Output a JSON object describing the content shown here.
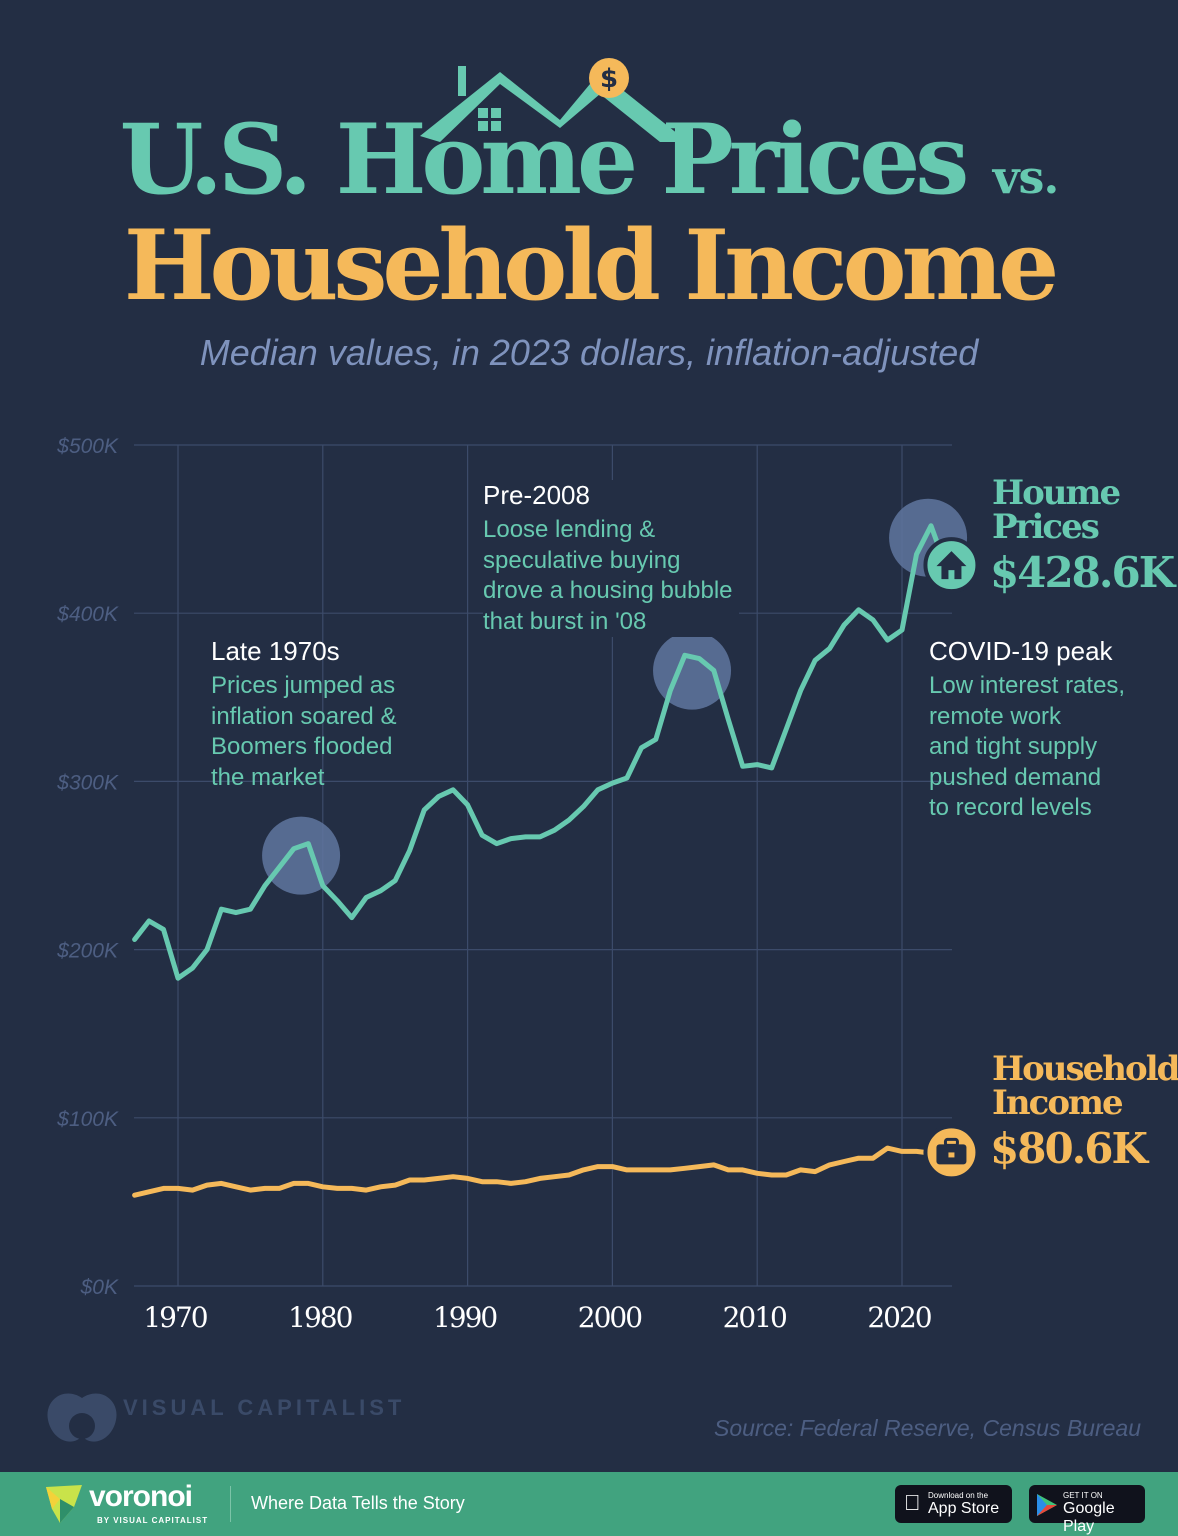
{
  "title": {
    "line1": "U.S. Home Prices",
    "vs": "vs.",
    "line2": "Household Income"
  },
  "subtitle": "Median values, in 2023 dollars, inflation-adjusted",
  "colors": {
    "background": "#232e44",
    "home": "#67c9b0",
    "income": "#f5b95a",
    "highlight": "#5f769f",
    "footer": "#41a37f"
  },
  "annotations": [
    {
      "heading": "Late 1970s",
      "lines": [
        "Prices jumped as",
        "inflation soared &",
        "Boomers flooded",
        "the market"
      ]
    },
    {
      "heading": "Pre-2008",
      "lines": [
        "Loose lending &",
        "speculative buying",
        "drove a housing bubble",
        "that burst in '08"
      ]
    },
    {
      "heading": "COVID-19 peak",
      "lines": [
        "Low interest rates,",
        "remote work",
        "and tight supply",
        "pushed demand",
        "to record levels"
      ]
    }
  ],
  "chart_data": {
    "type": "line",
    "title": "U.S. Home Prices vs. Household Income",
    "ylim": [
      0,
      500
    ],
    "xlim": [
      1967,
      2023
    ],
    "grid": true,
    "y_ticks": [
      "$0K",
      "$100K",
      "$200K",
      "$300K",
      "$400K",
      "$500K"
    ],
    "x_ticks": [
      "1970",
      "1980",
      "1990",
      "2000",
      "2010",
      "2020"
    ],
    "x": [
      1967,
      1968,
      1969,
      1970,
      1971,
      1972,
      1973,
      1974,
      1975,
      1976,
      1977,
      1978,
      1979,
      1980,
      1981,
      1982,
      1983,
      1984,
      1985,
      1986,
      1987,
      1988,
      1989,
      1990,
      1991,
      1992,
      1993,
      1994,
      1995,
      1996,
      1997,
      1998,
      1999,
      2000,
      2001,
      2002,
      2003,
      2004,
      2005,
      2006,
      2007,
      2008,
      2009,
      2010,
      2011,
      2012,
      2013,
      2014,
      2015,
      2016,
      2017,
      2018,
      2019,
      2020,
      2021,
      2022,
      2023
    ],
    "series": [
      {
        "name": "Houme Prices",
        "end_label": "$428.6K",
        "icon": "house-icon",
        "values": [
          206,
          217,
          212,
          183,
          189,
          200,
          224,
          222,
          224,
          238,
          249,
          260,
          263,
          238,
          229,
          219,
          231,
          235,
          241,
          259,
          283,
          291,
          295,
          286,
          268,
          263,
          266,
          267,
          267,
          271,
          277,
          285,
          295,
          299,
          302,
          320,
          325,
          354,
          375,
          373,
          366,
          337,
          309,
          310,
          308,
          331,
          354,
          372,
          379,
          393,
          402,
          396,
          384,
          390,
          435,
          452,
          428.6
        ]
      },
      {
        "name": "Household Income",
        "end_label": "$80.6K",
        "icon": "briefcase-icon",
        "values": [
          54,
          56,
          58,
          58,
          57,
          60,
          61,
          59,
          57,
          58,
          58,
          61,
          61,
          59,
          58,
          58,
          57,
          59,
          60,
          63,
          63,
          64,
          65,
          64,
          62,
          62,
          61,
          62,
          64,
          65,
          66,
          69,
          71,
          71,
          69,
          69,
          69,
          69,
          70,
          71,
          72,
          69,
          69,
          67,
          66,
          66,
          69,
          68,
          72,
          74,
          76,
          76,
          82,
          80,
          80,
          79,
          80.6
        ]
      }
    ],
    "highlights": [
      1978.5,
      2005.5,
      2021.8
    ]
  },
  "brand": {
    "logo": "VISUAL CAPITALIST",
    "source": "Source: Federal Reserve, Census Bureau"
  },
  "footer": {
    "logo": "voronoi",
    "logo_sub": "BY VISUAL CAPITALIST",
    "tagline": "Where Data Tells the Story",
    "app_store_small": "Download on the",
    "app_store": "App Store",
    "google_small": "GET IT ON",
    "google": "Google Play"
  }
}
